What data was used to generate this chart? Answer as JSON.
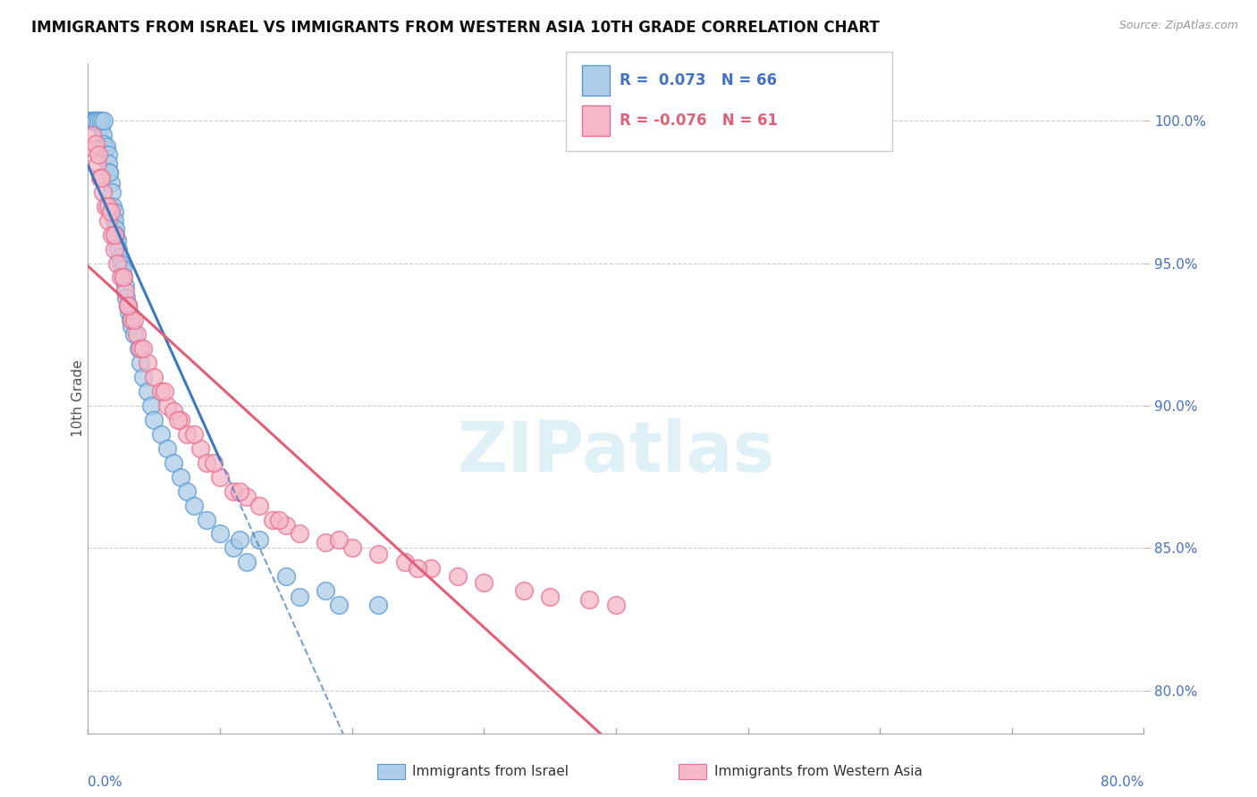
{
  "title": "IMMIGRANTS FROM ISRAEL VS IMMIGRANTS FROM WESTERN ASIA 10TH GRADE CORRELATION CHART",
  "source": "Source: ZipAtlas.com",
  "ylabel": "10th Grade",
  "yaxis_values": [
    80.0,
    85.0,
    90.0,
    95.0,
    100.0
  ],
  "xmin": 0.0,
  "xmax": 80.0,
  "ymin": 78.5,
  "ymax": 102.0,
  "legend": {
    "israel": {
      "R": 0.073,
      "N": 66
    },
    "western_asia": {
      "R": -0.076,
      "N": 61
    }
  },
  "watermark": "ZIPatlas",
  "blue_fill": "#aecde8",
  "pink_fill": "#f5b8c8",
  "blue_edge": "#5b9bd5",
  "pink_edge": "#e87090",
  "blue_line": "#3c7abf",
  "pink_line": "#e0607a",
  "israel_x": [
    0.2,
    0.3,
    0.4,
    0.5,
    0.6,
    0.7,
    0.8,
    0.9,
    1.0,
    1.0,
    1.1,
    1.2,
    1.3,
    1.4,
    1.5,
    1.5,
    1.6,
    1.7,
    1.8,
    1.9,
    2.0,
    2.0,
    2.1,
    2.2,
    2.3,
    2.4,
    2.5,
    2.6,
    2.7,
    2.8,
    2.9,
    3.0,
    3.1,
    3.2,
    3.3,
    3.5,
    3.8,
    4.0,
    4.2,
    4.5,
    4.8,
    5.0,
    5.5,
    6.0,
    6.5,
    7.0,
    7.5,
    8.0,
    9.0,
    10.0,
    11.0,
    11.5,
    12.0,
    13.0,
    15.0,
    16.0,
    18.0,
    19.0,
    22.0,
    0.5,
    0.6,
    0.8,
    1.0,
    1.2,
    1.6,
    2.1
  ],
  "israel_y": [
    100.0,
    100.0,
    100.0,
    100.0,
    100.0,
    100.0,
    100.0,
    100.0,
    100.0,
    99.8,
    99.5,
    99.2,
    99.0,
    99.1,
    98.8,
    98.5,
    98.2,
    97.8,
    97.5,
    97.0,
    96.8,
    96.5,
    96.2,
    95.8,
    95.5,
    95.2,
    95.0,
    94.8,
    94.5,
    94.2,
    93.8,
    93.5,
    93.3,
    93.0,
    92.8,
    92.5,
    92.0,
    91.5,
    91.0,
    90.5,
    90.0,
    89.5,
    89.0,
    88.5,
    88.0,
    87.5,
    87.0,
    86.5,
    86.0,
    85.5,
    85.0,
    85.3,
    84.5,
    85.3,
    84.0,
    83.3,
    83.5,
    83.0,
    83.0,
    100.0,
    100.0,
    100.0,
    100.0,
    100.0,
    98.2,
    96.0
  ],
  "western_asia_x": [
    0.3,
    0.5,
    0.7,
    0.9,
    1.1,
    1.3,
    1.5,
    1.8,
    2.0,
    2.2,
    2.5,
    2.8,
    3.0,
    3.3,
    3.7,
    4.0,
    4.5,
    5.0,
    5.5,
    6.0,
    6.5,
    7.0,
    7.5,
    8.5,
    9.0,
    10.0,
    11.0,
    12.0,
    13.0,
    14.0,
    15.0,
    16.0,
    18.0,
    20.0,
    22.0,
    24.0,
    26.0,
    28.0,
    30.0,
    33.0,
    35.0,
    38.0,
    40.0,
    1.0,
    1.5,
    2.0,
    2.7,
    3.5,
    4.2,
    5.8,
    6.8,
    8.0,
    9.5,
    11.5,
    14.5,
    19.0,
    25.0,
    0.6,
    0.8,
    1.7,
    3.0
  ],
  "western_asia_y": [
    99.5,
    99.0,
    98.5,
    98.0,
    97.5,
    97.0,
    96.5,
    96.0,
    95.5,
    95.0,
    94.5,
    94.0,
    93.5,
    93.0,
    92.5,
    92.0,
    91.5,
    91.0,
    90.5,
    90.0,
    89.8,
    89.5,
    89.0,
    88.5,
    88.0,
    87.5,
    87.0,
    86.8,
    86.5,
    86.0,
    85.8,
    85.5,
    85.2,
    85.0,
    84.8,
    84.5,
    84.3,
    84.0,
    83.8,
    83.5,
    83.3,
    83.2,
    83.0,
    98.0,
    97.0,
    96.0,
    94.5,
    93.0,
    92.0,
    90.5,
    89.5,
    89.0,
    88.0,
    87.0,
    86.0,
    85.3,
    84.3,
    99.2,
    98.8,
    96.8,
    93.5
  ]
}
